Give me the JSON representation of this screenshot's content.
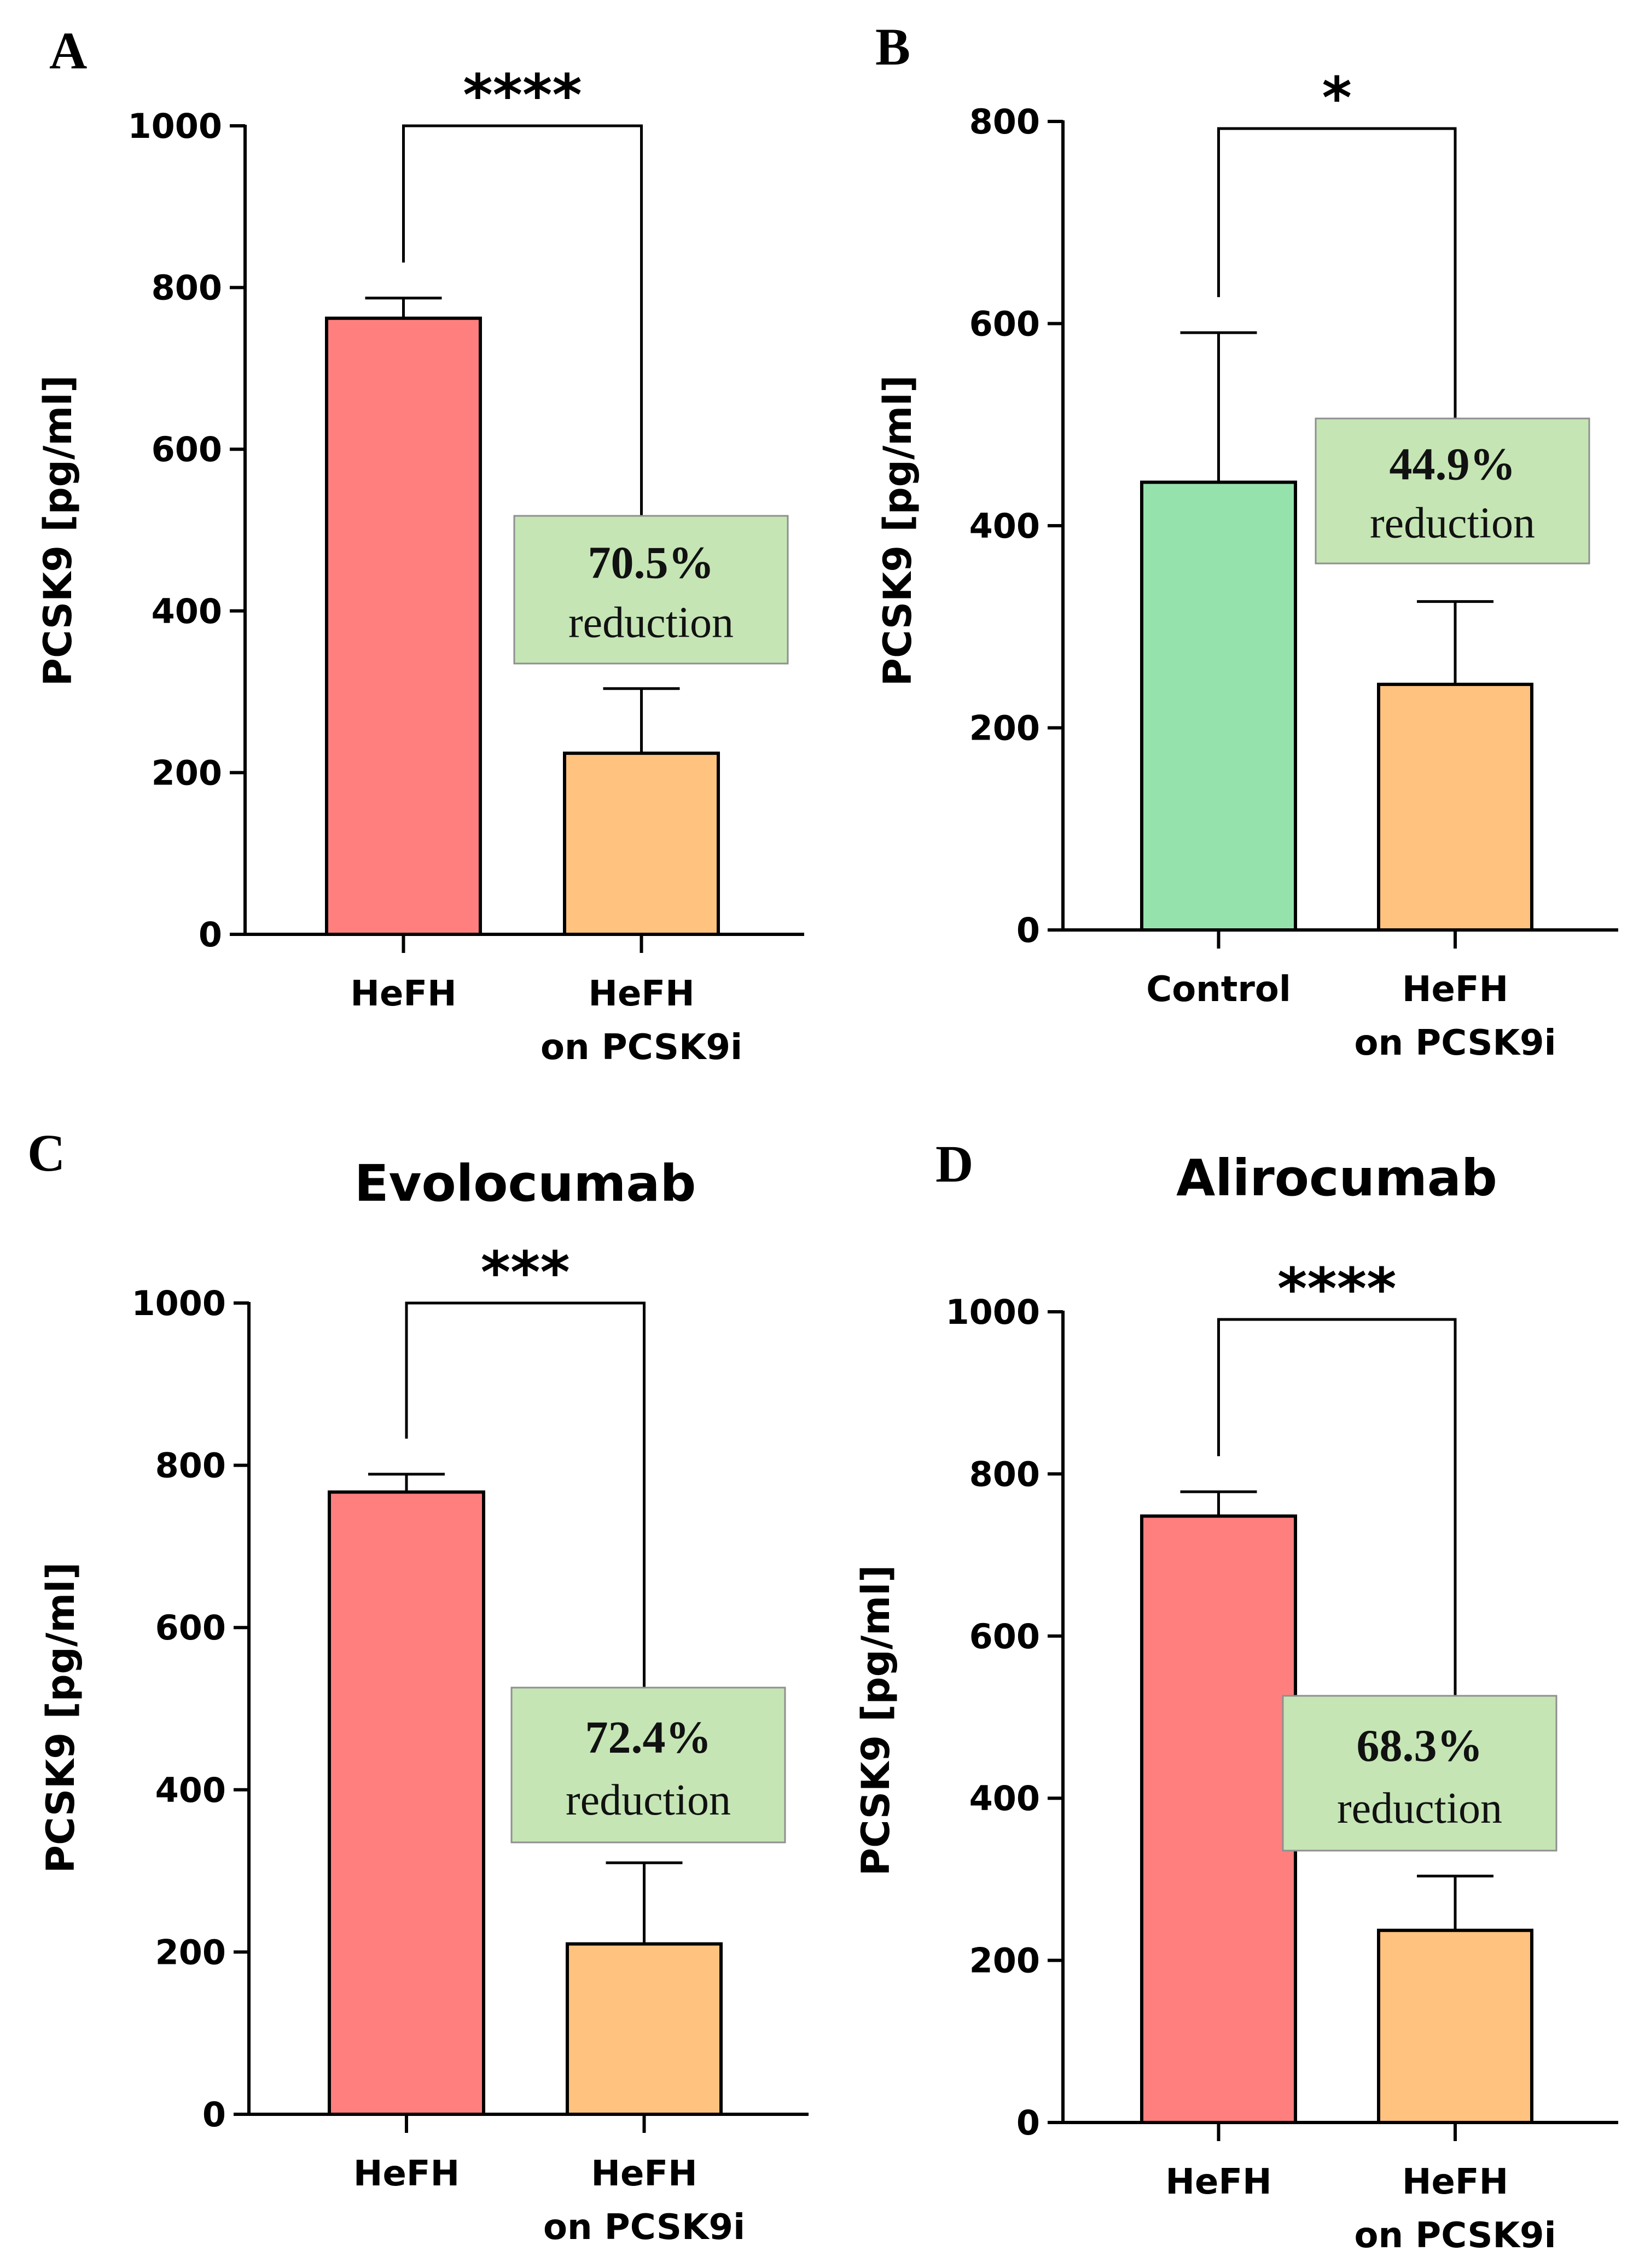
{
  "chart_data": [
    {
      "id": "A",
      "type": "bar",
      "panel_label": "A",
      "title": "",
      "ylabel": "PCSK9 [pg/ml]",
      "ylim": [
        0,
        1000
      ],
      "yticks": [
        0,
        200,
        400,
        600,
        800,
        1000
      ],
      "categories": [
        [
          "HeFH"
        ],
        [
          "HeFH",
          "on PCSK9i"
        ]
      ],
      "values": [
        762,
        224
      ],
      "errors": [
        25,
        80
      ],
      "colors": [
        "#FF7F7F",
        "#FFC27F"
      ],
      "significance": "****",
      "annotation": {
        "percent": "70.5%",
        "text": "reduction"
      }
    },
    {
      "id": "B",
      "type": "bar",
      "panel_label": "B",
      "title": "",
      "ylabel": "PCSK9 [pg/ml]",
      "ylim": [
        0,
        800
      ],
      "yticks": [
        0,
        200,
        400,
        600,
        800
      ],
      "categories": [
        [
          "Control"
        ],
        [
          "HeFH",
          "on PCSK9i"
        ]
      ],
      "values": [
        443,
        243
      ],
      "errors": [
        148,
        82
      ],
      "colors": [
        "#96E2AD",
        "#FFC27F"
      ],
      "significance": "*",
      "annotation": {
        "percent": "44.9%",
        "text": "reduction"
      }
    },
    {
      "id": "C",
      "type": "bar",
      "panel_label": "C",
      "title": "Evolocumab",
      "ylabel": "PCSK9 [pg/ml]",
      "ylim": [
        0,
        1000
      ],
      "yticks": [
        0,
        200,
        400,
        600,
        800,
        1000
      ],
      "categories": [
        [
          "HeFH"
        ],
        [
          "HeFH",
          "on PCSK9i"
        ]
      ],
      "values": [
        767,
        210
      ],
      "errors": [
        22,
        100
      ],
      "colors": [
        "#FF7F7F",
        "#FFC27F"
      ],
      "significance": "***",
      "annotation": {
        "percent": "72.4%",
        "text": "reduction"
      }
    },
    {
      "id": "D",
      "type": "bar",
      "panel_label": "D",
      "title": "Alirocumab",
      "ylabel": "PCSK9 [pg/ml]",
      "ylim": [
        0,
        1000
      ],
      "yticks": [
        0,
        200,
        400,
        600,
        800,
        1000
      ],
      "categories": [
        [
          "HeFH"
        ],
        [
          "HeFH",
          "on PCSK9i"
        ]
      ],
      "values": [
        748,
        237
      ],
      "errors": [
        30,
        67
      ],
      "colors": [
        "#FF7F7F",
        "#FFC27F"
      ],
      "significance": "****",
      "annotation": {
        "percent": "68.3%",
        "text": "reduction"
      }
    }
  ]
}
